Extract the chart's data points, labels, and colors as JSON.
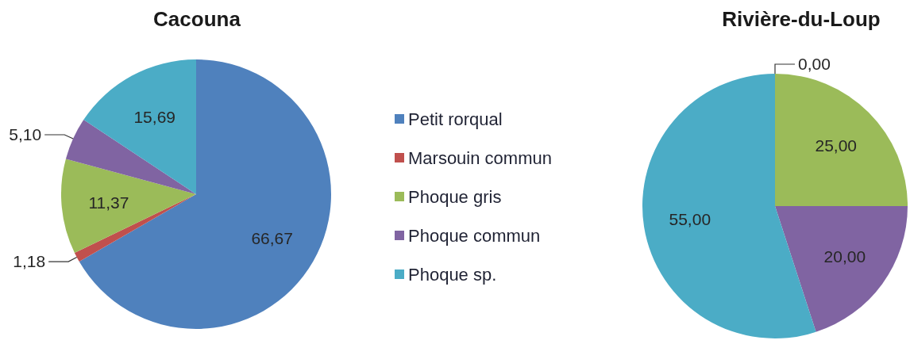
{
  "chart_data": [
    {
      "type": "pie",
      "title": "Cacouna",
      "categories": [
        "Petit rorqual",
        "Marsouin commun",
        "Phoque gris",
        "Phoque commun",
        "Phoque sp."
      ],
      "values": [
        66.67,
        1.18,
        11.37,
        5.1,
        15.69
      ],
      "colors": [
        "#4f81bd",
        "#c0504d",
        "#9bbb59",
        "#8064a2",
        "#4bacc6"
      ],
      "value_labels": [
        "66,67",
        "1,18",
        "11,37",
        "5,10",
        "15,69"
      ],
      "legend": "right"
    },
    {
      "type": "pie",
      "title": "Rivière-du-Loup",
      "categories": [
        null,
        null,
        null,
        null,
        null
      ],
      "values": [
        0,
        0,
        25,
        20,
        55
      ],
      "colors": [
        null,
        null,
        "#9bbb59",
        "#8064a2",
        "#4bacc6"
      ],
      "value_labels": [
        null,
        "0,00",
        "25,00",
        "20,00",
        "55,00"
      ]
    }
  ]
}
